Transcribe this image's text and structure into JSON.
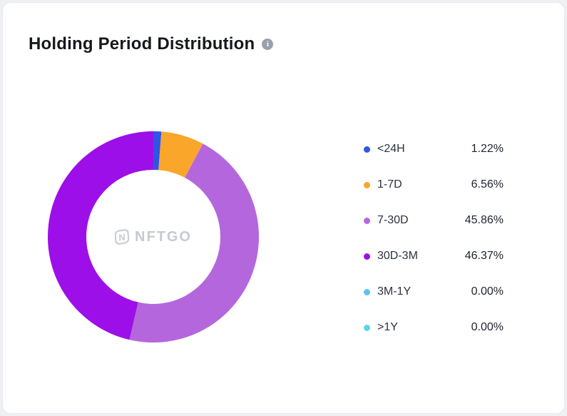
{
  "card": {
    "title": "Holding Period Distribution"
  },
  "watermark": {
    "logo_letter": "N",
    "text": "NFTGO"
  },
  "chart_data": {
    "type": "pie",
    "donut": true,
    "title": "Holding Period Distribution",
    "legend_position": "right",
    "start_angle_deg": 0,
    "direction": "clockwise",
    "series": [
      {
        "label": "<24H",
        "value": 1.22,
        "display": "1.22%",
        "color": "#2d55e6"
      },
      {
        "label": "1-7D",
        "value": 6.56,
        "display": "6.56%",
        "color": "#f9a62b"
      },
      {
        "label": "7-30D",
        "value": 45.86,
        "display": "45.86%",
        "color": "#b467dd"
      },
      {
        "label": "30D-3M",
        "value": 46.37,
        "display": "46.37%",
        "color": "#9d0fe8"
      },
      {
        "label": "3M-1Y",
        "value": 0.0,
        "display": "0.00%",
        "color": "#5ec1f2"
      },
      {
        "label": ">1Y",
        "value": 0.0,
        "display": "0.00%",
        "color": "#59d8e0"
      }
    ]
  }
}
